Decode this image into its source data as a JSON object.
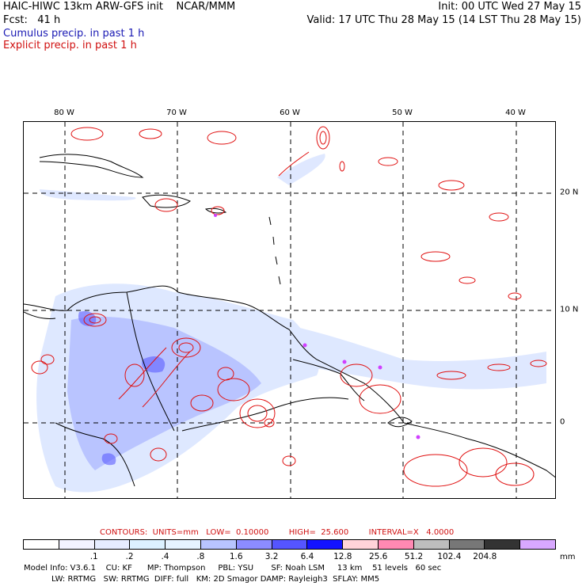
{
  "header": {
    "left_line1": "HAIC-HIWC 13km ARW-GFS init    NCAR/MMM",
    "left_line2": "Fcst:   41 h",
    "right_line1": "Init: 00 UTC Wed 27 May 15",
    "right_line2": "Valid: 17 UTC Thu 28 May 15 (14 LST Thu 28 May 15)",
    "legend_cumulus": "Cumulus precip. in past 1 h",
    "legend_explicit": "Explicit precip. in past 1 h"
  },
  "map": {
    "lon_labels": [
      "80 W",
      "70 W",
      "60 W",
      "50 W",
      "40 W"
    ],
    "lat_labels": [
      "20 N",
      "10 N",
      "0"
    ],
    "colors": {
      "coast": "#000000",
      "grid": "#000000",
      "cumulus_light": "#dbe6ff",
      "cumulus_mid": "#8f9cff",
      "cumulus_strong": "#4b4bff",
      "explicit": "#e01010",
      "marker": "#d040ff"
    }
  },
  "contour_note": {
    "line": "CONTOURS:  UNITS=mm   LOW=  0.10000        HIGH=  25.600        INTERVAL=X   4.0000"
  },
  "colorbar": {
    "unit": "mm",
    "labels": [
      ".1",
      ".2",
      ".4",
      ".8",
      "1.6",
      "3.2",
      "6.4",
      "12.8",
      "25.6",
      "51.2",
      "102.4",
      "204.8"
    ],
    "colors": [
      "#ffffff",
      "#f2f2ff",
      "#e6ecff",
      "#dcf1ff",
      "#e6f3ff",
      "#b8c4ff",
      "#8c8cff",
      "#5555ff",
      "#1212ff",
      "#ffd3d9",
      "#ff89b3",
      "#bdbdbd",
      "#777777",
      "#333333",
      "#d8a8ff"
    ]
  },
  "footer": {
    "line1": "Model Info: V3.6.1    CU: KF      MP: Thompson     PBL: YSU       SF: Noah LSM     13 km    51 levels   60 sec",
    "line2": "           LW: RRTMG   SW: RRTMG  DIFF: full   KM: 2D Smagor DAMP: Rayleigh3  SFLAY: MM5"
  }
}
